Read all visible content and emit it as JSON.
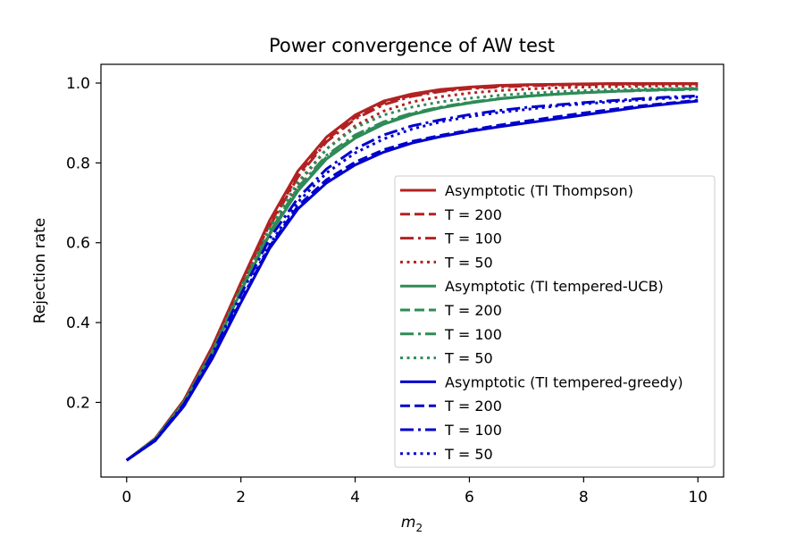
{
  "chart_data": {
    "type": "line",
    "title": "Power convergence of AW test",
    "xlabel_base": "m",
    "xlabel_subscript": "2",
    "ylabel": "Rejection rate",
    "xlim": [
      -0.45,
      10.45
    ],
    "ylim": [
      0.013,
      1.047
    ],
    "xticks": [
      0,
      2,
      4,
      6,
      8,
      10
    ],
    "xtick_labels": [
      "0",
      "2",
      "4",
      "6",
      "8",
      "10"
    ],
    "yticks": [
      0.2,
      0.4,
      0.6,
      0.8,
      1.0
    ],
    "ytick_labels": [
      "0.2",
      "0.4",
      "0.6",
      "0.8",
      "1.0"
    ],
    "grid": false,
    "legend_position": "center-right",
    "x": [
      0,
      0.5,
      1,
      1.5,
      2,
      2.5,
      3,
      3.5,
      4,
      4.5,
      5,
      5.5,
      6,
      6.5,
      7,
      7.5,
      8,
      8.5,
      9,
      9.5,
      10
    ],
    "series": [
      {
        "name": "Asymptotic (TI Thompson)",
        "color": "#b22222",
        "style": "solid",
        "values": [
          0.055,
          0.11,
          0.205,
          0.34,
          0.5,
          0.655,
          0.78,
          0.865,
          0.92,
          0.955,
          0.973,
          0.984,
          0.99,
          0.994,
          0.996,
          0.997,
          0.998,
          0.999,
          0.999,
          0.999,
          0.999
        ]
      },
      {
        "name": "T = 200",
        "color": "#b22222",
        "style": "dashed",
        "values": [
          0.055,
          0.108,
          0.2,
          0.335,
          0.493,
          0.645,
          0.77,
          0.858,
          0.914,
          0.95,
          0.97,
          0.981,
          0.988,
          0.992,
          0.995,
          0.996,
          0.997,
          0.998,
          0.998,
          0.998,
          0.998
        ]
      },
      {
        "name": "T = 100",
        "color": "#b22222",
        "style": "dashdot",
        "values": [
          0.055,
          0.108,
          0.2,
          0.333,
          0.49,
          0.64,
          0.765,
          0.853,
          0.91,
          0.946,
          0.967,
          0.979,
          0.986,
          0.99,
          0.993,
          0.995,
          0.996,
          0.997,
          0.997,
          0.998,
          0.998
        ]
      },
      {
        "name": "T = 50",
        "color": "#b22222",
        "style": "dotted",
        "values": [
          0.055,
          0.107,
          0.198,
          0.328,
          0.482,
          0.628,
          0.748,
          0.835,
          0.893,
          0.93,
          0.953,
          0.966,
          0.975,
          0.981,
          0.985,
          0.988,
          0.99,
          0.991,
          0.992,
          0.993,
          0.993
        ]
      },
      {
        "name": "Asymptotic (TI tempered-UCB)",
        "color": "#2e8b57",
        "style": "solid",
        "values": [
          0.055,
          0.108,
          0.198,
          0.325,
          0.478,
          0.62,
          0.73,
          0.81,
          0.862,
          0.897,
          0.921,
          0.938,
          0.95,
          0.96,
          0.967,
          0.972,
          0.976,
          0.979,
          0.982,
          0.984,
          0.986
        ]
      },
      {
        "name": "T = 200",
        "color": "#2e8b57",
        "style": "dashed",
        "values": [
          0.055,
          0.108,
          0.198,
          0.326,
          0.48,
          0.623,
          0.735,
          0.815,
          0.866,
          0.9,
          0.923,
          0.939,
          0.951,
          0.96,
          0.967,
          0.972,
          0.976,
          0.979,
          0.982,
          0.984,
          0.985
        ]
      },
      {
        "name": "T = 100",
        "color": "#2e8b57",
        "style": "dashdot",
        "values": [
          0.055,
          0.108,
          0.199,
          0.327,
          0.482,
          0.626,
          0.739,
          0.819,
          0.87,
          0.903,
          0.925,
          0.94,
          0.952,
          0.961,
          0.967,
          0.972,
          0.976,
          0.979,
          0.981,
          0.983,
          0.984
        ]
      },
      {
        "name": "T = 50",
        "color": "#2e8b57",
        "style": "dotted",
        "values": [
          0.055,
          0.108,
          0.2,
          0.33,
          0.488,
          0.636,
          0.752,
          0.835,
          0.888,
          0.92,
          0.94,
          0.953,
          0.962,
          0.969,
          0.974,
          0.978,
          0.981,
          0.983,
          0.985,
          0.986,
          0.987
        ]
      },
      {
        "name": "Asymptotic (TI tempered-greedy)",
        "color": "#0000cd",
        "style": "solid",
        "values": [
          0.055,
          0.104,
          0.19,
          0.31,
          0.45,
          0.585,
          0.685,
          0.75,
          0.795,
          0.827,
          0.85,
          0.866,
          0.879,
          0.89,
          0.9,
          0.91,
          0.92,
          0.93,
          0.94,
          0.948,
          0.955
        ]
      },
      {
        "name": "T = 200",
        "color": "#0000cd",
        "style": "dashed",
        "values": [
          0.055,
          0.105,
          0.191,
          0.312,
          0.454,
          0.59,
          0.692,
          0.758,
          0.802,
          0.833,
          0.854,
          0.869,
          0.882,
          0.894,
          0.905,
          0.915,
          0.925,
          0.934,
          0.943,
          0.95,
          0.957
        ]
      },
      {
        "name": "T = 100",
        "color": "#0000cd",
        "style": "dashdot",
        "values": [
          0.055,
          0.106,
          0.195,
          0.322,
          0.47,
          0.61,
          0.712,
          0.785,
          0.835,
          0.87,
          0.893,
          0.908,
          0.921,
          0.931,
          0.939,
          0.945,
          0.951,
          0.956,
          0.961,
          0.965,
          0.968
        ]
      },
      {
        "name": "T = 50",
        "color": "#0000cd",
        "style": "dotted",
        "values": [
          0.055,
          0.104,
          0.19,
          0.312,
          0.455,
          0.595,
          0.702,
          0.775,
          0.825,
          0.86,
          0.885,
          0.903,
          0.916,
          0.926,
          0.934,
          0.942,
          0.948,
          0.953,
          0.958,
          0.962,
          0.965
        ]
      }
    ]
  }
}
